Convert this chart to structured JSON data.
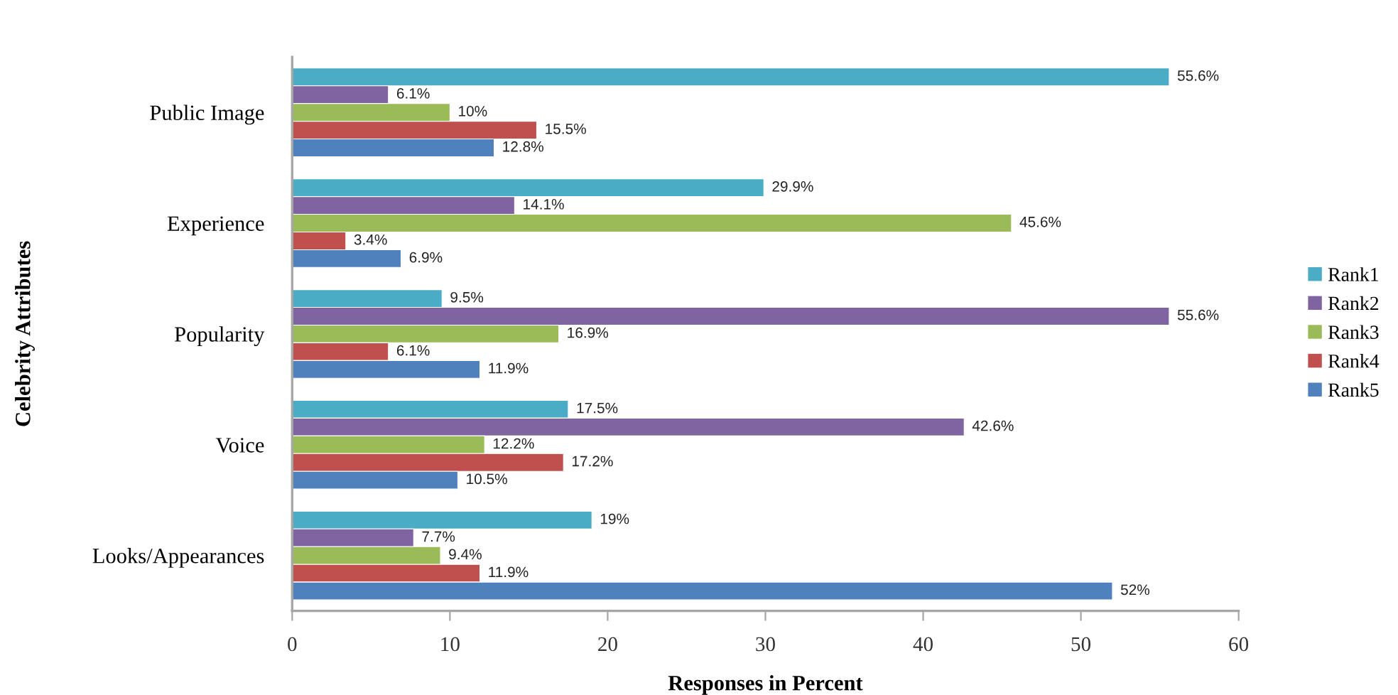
{
  "chart_data": {
    "type": "bar",
    "orientation": "horizontal",
    "xlabel": "Responses in Percent",
    "ylabel": "Celebrity Attributes",
    "categories": [
      "Public Image",
      "Experience",
      "Popularity",
      "Voice",
      "Looks/Appearances"
    ],
    "series": [
      {
        "name": "Rank1",
        "color": "#4bacc6",
        "values": [
          55.6,
          29.9,
          9.5,
          17.5,
          19
        ],
        "value_labels": [
          "55.6%",
          "29.9%",
          "9.5%",
          "17.5%",
          "19%"
        ]
      },
      {
        "name": "Rank2",
        "color": "#8064a2",
        "values": [
          6.1,
          14.1,
          55.6,
          42.6,
          7.7
        ],
        "value_labels": [
          "6.1%",
          "14.1%",
          "55.6%",
          "42.6%",
          "7.7%"
        ]
      },
      {
        "name": "Rank3",
        "color": "#9bbb59",
        "values": [
          10,
          45.6,
          16.9,
          12.2,
          9.4
        ],
        "value_labels": [
          "10%",
          "45.6%",
          "16.9%",
          "12.2%",
          "9.4%"
        ]
      },
      {
        "name": "Rank4",
        "color": "#c0504d",
        "values": [
          15.5,
          3.4,
          6.1,
          17.2,
          11.9
        ],
        "value_labels": [
          "15.5%",
          "3.4%",
          "6.1%",
          "17.2%",
          "11.9%"
        ]
      },
      {
        "name": "Rank5",
        "color": "#4f81bd",
        "values": [
          12.8,
          6.9,
          11.9,
          10.5,
          52
        ],
        "value_labels": [
          "12.8%",
          "6.9%",
          "11.9%",
          "10.5%",
          "52%"
        ]
      }
    ],
    "xlim": [
      0,
      60
    ],
    "xticks": [
      0,
      10,
      20,
      30,
      40,
      50,
      60
    ],
    "grid": false,
    "legend": "right"
  }
}
